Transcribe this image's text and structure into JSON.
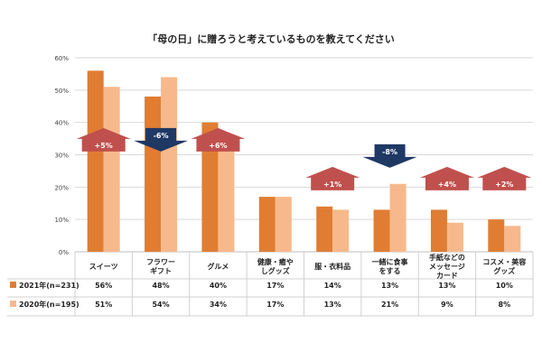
{
  "chart_data": {
    "type": "bar",
    "title": "「母の日」に贈ろうと考えているものを教えてください",
    "categories": [
      [
        "スイーツ"
      ],
      [
        "フラワー",
        "ギフト"
      ],
      [
        "グルメ"
      ],
      [
        "健康・癒や",
        "しグッズ"
      ],
      [
        "服・衣料品"
      ],
      [
        "一緒に食事",
        "をする"
      ],
      [
        "手紙などの",
        "メッセージ",
        "カード"
      ],
      [
        "コスメ・美容",
        "グッズ"
      ]
    ],
    "series": [
      {
        "name": "2021年(n=231)",
        "color": "#E07D33",
        "values": [
          56,
          48,
          40,
          17,
          14,
          13,
          13,
          10
        ],
        "labels": [
          "56%",
          "48%",
          "40%",
          "17%",
          "14%",
          "13%",
          "13%",
          "10%"
        ]
      },
      {
        "name": "2020年(n=195)",
        "color": "#F7B98B",
        "values": [
          51,
          54,
          34,
          17,
          13,
          21,
          9,
          8
        ],
        "labels": [
          "51%",
          "54%",
          "34%",
          "17%",
          "13%",
          "21%",
          "9%",
          "8%"
        ]
      }
    ],
    "y_ticks": [
      "0%",
      "10%",
      "20%",
      "30%",
      "40%",
      "50%",
      "60%"
    ],
    "ylim": [
      0,
      60
    ],
    "annotations": [
      {
        "category_index": 0,
        "text": "+5%",
        "direction": "up",
        "level": 31
      },
      {
        "category_index": 1,
        "text": "-6%",
        "direction": "down",
        "level": 31
      },
      {
        "category_index": 2,
        "text": "+6%",
        "direction": "up",
        "level": 31
      },
      {
        "category_index": 4,
        "text": "+1%",
        "direction": "up",
        "level": 19
      },
      {
        "category_index": 5,
        "text": "-8%",
        "direction": "down",
        "level": 26
      },
      {
        "category_index": 6,
        "text": "+4%",
        "direction": "up",
        "level": 19
      },
      {
        "category_index": 7,
        "text": "+2%",
        "direction": "up",
        "level": 19
      }
    ],
    "annotation_colors": {
      "up": "#C0504D",
      "down": "#1F3864"
    },
    "grid": true,
    "legend": "table-bottom"
  }
}
